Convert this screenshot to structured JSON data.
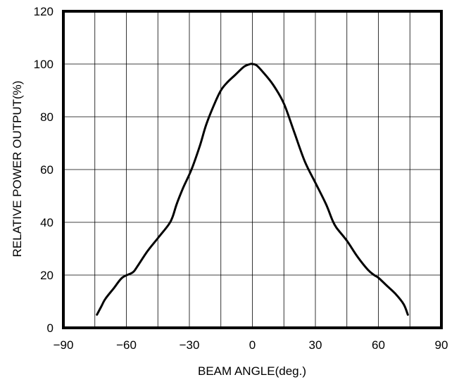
{
  "chart_data": {
    "type": "line",
    "title": "",
    "xlabel": "BEAM ANGLE(deg.)",
    "ylabel": "RELATIVE POWER OUTPUT(%)",
    "xlim": [
      -90,
      90
    ],
    "ylim": [
      0,
      120
    ],
    "x_ticks": [
      -90,
      -60,
      -30,
      0,
      30,
      60,
      90
    ],
    "x_tick_labels": [
      "−90",
      "−60",
      "−30",
      "0",
      "30",
      "60",
      "90"
    ],
    "y_ticks": [
      0,
      20,
      40,
      60,
      80,
      100,
      120
    ],
    "y_tick_labels": [
      "0",
      "20",
      "40",
      "60",
      "80",
      "100",
      "120"
    ],
    "x_grid_step": 15,
    "y_grid_step": 20,
    "grid": true,
    "legend": "none",
    "series": [
      {
        "color": "#000000",
        "x": [
          -74,
          -72,
          -70,
          -66,
          -62,
          -57,
          -55,
          -50,
          -45,
          -40,
          -38,
          -36,
          -33,
          -29,
          -25,
          -22,
          -18,
          -15,
          -12,
          -8,
          -4,
          -1,
          0,
          2,
          5,
          10,
          15,
          20,
          25,
          30,
          35,
          38,
          40,
          45,
          50,
          55,
          58,
          60,
          64,
          68,
          72,
          74
        ],
        "y": [
          5,
          8,
          11,
          15,
          19,
          21,
          23,
          29,
          34,
          39,
          42,
          47,
          53,
          60,
          69,
          77,
          85,
          90,
          93,
          96,
          99,
          100,
          100,
          99.5,
          97,
          92,
          85,
          74,
          63,
          55,
          47,
          41,
          38,
          33,
          27,
          22,
          20,
          19,
          16,
          13,
          9,
          5
        ]
      }
    ]
  }
}
